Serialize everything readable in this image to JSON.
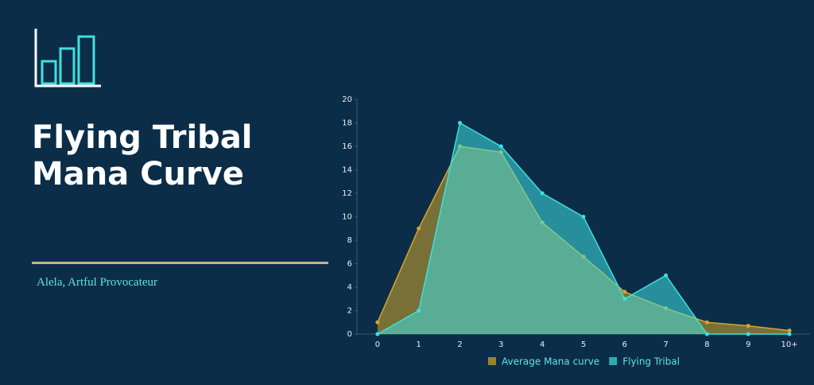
{
  "chart_data": {
    "type": "area",
    "title": "Flying Tribal Mana Curve",
    "subtitle": "Alela, Artful Provocateur",
    "categories": [
      "0",
      "1",
      "2",
      "3",
      "4",
      "5",
      "6",
      "7",
      "8",
      "9",
      "10+"
    ],
    "series": [
      {
        "name": "Average Mana curve",
        "color": "#d4a72c",
        "values": [
          1,
          9,
          16,
          15.5,
          9.5,
          6.6,
          3.6,
          2.2,
          1,
          0.7,
          0.3
        ]
      },
      {
        "name": "Flying Tribal",
        "color": "#3ee0e0",
        "values": [
          0,
          2,
          18,
          16,
          12,
          10,
          3,
          5,
          0,
          0,
          0
        ]
      }
    ],
    "ylim": [
      0,
      20
    ],
    "yticks": [
      0,
      2,
      4,
      6,
      8,
      10,
      12,
      14,
      16,
      18,
      20
    ],
    "grid": false
  }
}
